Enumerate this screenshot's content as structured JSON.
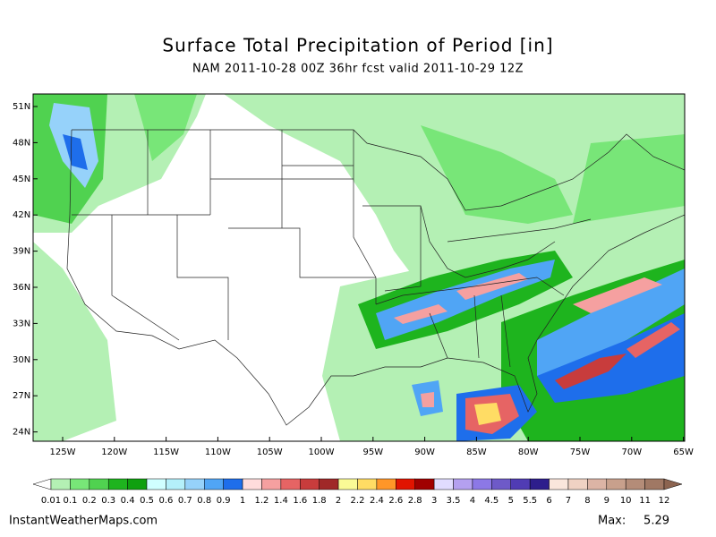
{
  "header": {
    "title": "Surface Total Precipitation of Period [in]",
    "subtitle": "NAM 2011-10-28 00Z 36hr fcst valid 2011-10-29 12Z"
  },
  "map": {
    "lat_labels": [
      "51N",
      "48N",
      "45N",
      "42N",
      "39N",
      "36N",
      "33N",
      "30N",
      "27N",
      "24N"
    ],
    "lon_labels": [
      "125W",
      "120W",
      "115W",
      "110W",
      "105W",
      "100W",
      "95W",
      "90W",
      "85W",
      "80W",
      "75W",
      "70W",
      "65W"
    ]
  },
  "colorbar": {
    "labels": [
      "0.01",
      "0.1",
      "0.2",
      "0.3",
      "0.4",
      "0.5",
      "0.6",
      "0.7",
      "0.8",
      "0.9",
      "1",
      "1.2",
      "1.4",
      "1.6",
      "1.8",
      "2",
      "2.2",
      "2.4",
      "2.6",
      "2.8",
      "3",
      "3.5",
      "4",
      "4.5",
      "5",
      "5.5",
      "6",
      "7",
      "8",
      "9",
      "10",
      "11",
      "12"
    ],
    "colors": [
      "#b4f0b4",
      "#78e678",
      "#50d250",
      "#1eb41e",
      "#0fa00f",
      "#d0ffff",
      "#b4f0fa",
      "#96d2fa",
      "#50a5f5",
      "#1e6eeb",
      "#ffdcdc",
      "#f5a0a0",
      "#e66464",
      "#c83c3c",
      "#a02828",
      "#fafa96",
      "#ffdc64",
      "#ff9628",
      "#e11400",
      "#a00000",
      "#e1dcff",
      "#b4a0f0",
      "#8c78e6",
      "#6e5ac8",
      "#503cb4",
      "#2d1e8c",
      "#fae6dc",
      "#f0d2c3",
      "#dcb4a5",
      "#c8a08c",
      "#b48c78",
      "#a07864"
    ],
    "under_color": "#ffffff",
    "over_color": "#8c6450"
  },
  "footer": {
    "site": "InstantWeatherMaps.com",
    "max_label": "Max:",
    "max_value": "5.29"
  }
}
